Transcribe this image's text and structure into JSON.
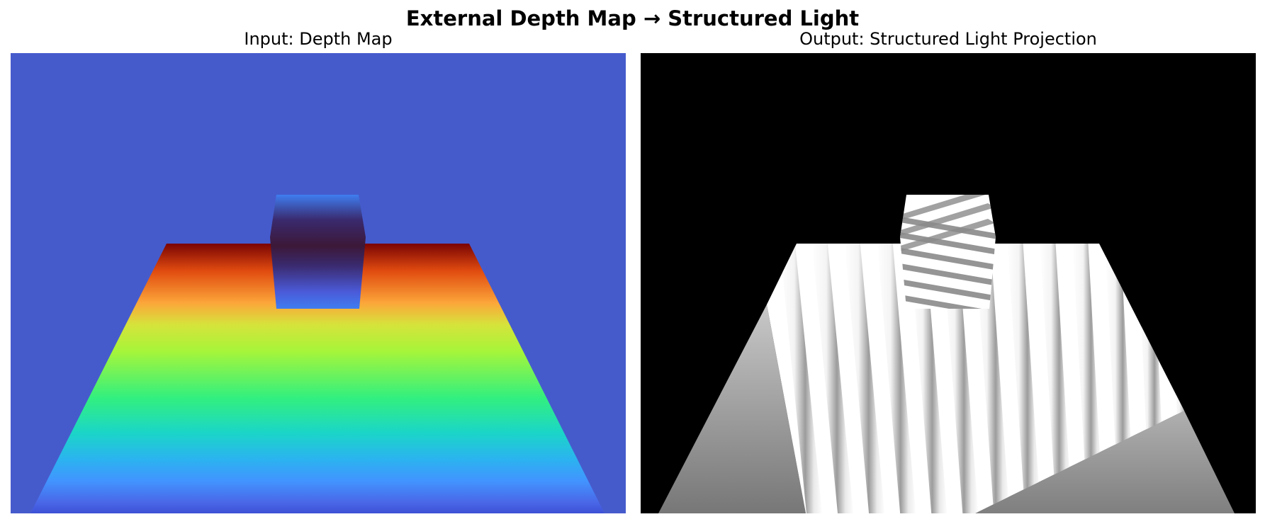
{
  "figure": {
    "title": "External Depth Map → Structured Light"
  },
  "panels": [
    {
      "id": "input",
      "title": "Input: Depth Map"
    },
    {
      "id": "output",
      "title": "Output: Structured Light Projection"
    }
  ],
  "colors": {
    "background_depth": "#455bcc",
    "output_background": "#000000",
    "depth_colormap": [
      "#7a0403",
      "#e04a0f",
      "#fca63a",
      "#d6e33b",
      "#a6f53a",
      "#33f07e",
      "#1bd6c7",
      "#2bb3f0",
      "#4294ff",
      "#4a67e8",
      "#3d51d6"
    ],
    "object_gradient": [
      "#3f7df0",
      "#3a2a6e",
      "#3c1838",
      "#3a2a6e",
      "#4b5ad8",
      "#3f7df0"
    ]
  },
  "icons": []
}
